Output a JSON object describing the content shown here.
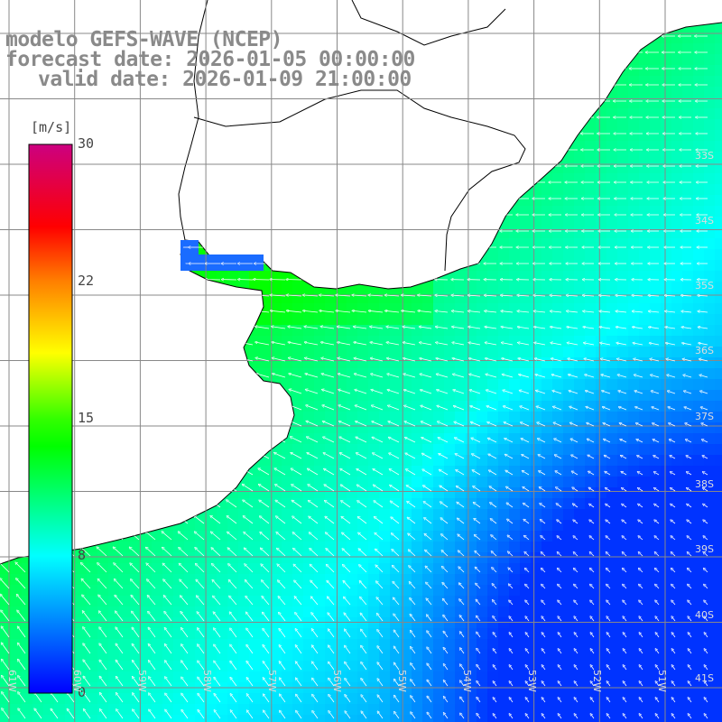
{
  "header": {
    "model": "modelo GEFS-WAVE (NCEP)",
    "forecast": "forecast date: 2026-01-05 00:00:00",
    "valid": "valid date: 2026-01-09 21:00:00"
  },
  "colorbar": {
    "unit": "[m/s]",
    "ticks": [
      "30",
      "22",
      "15",
      "8",
      "0"
    ],
    "colors": [
      "#0000ff",
      "#00ffff",
      "#00ff00",
      "#ffff00",
      "#ff8000",
      "#ff0000",
      "#cc0080"
    ]
  },
  "grid": {
    "longitudes": [
      "61W",
      "60W",
      "59W",
      "58W",
      "57W",
      "56W",
      "55W",
      "54W",
      "53W",
      "52W",
      "51W"
    ],
    "latitudes": [
      "33S",
      "34S",
      "35S",
      "36S",
      "37S",
      "38S",
      "39S",
      "40S",
      "41S"
    ]
  },
  "map_data": {
    "type": "wind-field",
    "variable": "wind speed",
    "unit": "m/s",
    "speed_range": [
      0,
      30
    ],
    "lon_range": [
      -61.5,
      -50.5
    ],
    "lat_range": [
      -41.5,
      -31
    ],
    "ocean_color": "#00e080",
    "land_color": "#ffffff",
    "grid_color": "#888888",
    "coast_color": "#000000"
  }
}
